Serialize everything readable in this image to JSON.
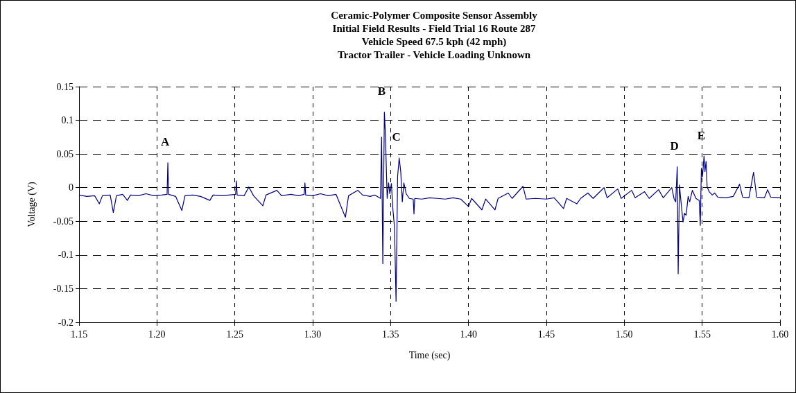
{
  "chart_data": {
    "type": "line",
    "title": "Ceramic-Polymer Composite Sensor Assembly\nInitial Field Results - Field Trial 16 Route 287\nVehicle Speed 67.5 kph (42 mph)\nTractor Trailer - Vehicle Loading Unknown",
    "xlabel": "Time (sec)",
    "ylabel": "Voltage (V)",
    "x": [
      1.15,
      1.155,
      1.16,
      1.163,
      1.165,
      1.17,
      1.172,
      1.174,
      1.178,
      1.181,
      1.183,
      1.188,
      1.193,
      1.198,
      1.203,
      1.2065,
      1.207,
      1.2075,
      1.212,
      1.216,
      1.218,
      1.223,
      1.228,
      1.234,
      1.236,
      1.242,
      1.2505,
      1.251,
      1.2515,
      1.256,
      1.259,
      1.262,
      1.268,
      1.27,
      1.277,
      1.28,
      1.286,
      1.291,
      1.2945,
      1.295,
      1.2955,
      1.3,
      1.305,
      1.31,
      1.315,
      1.321,
      1.323,
      1.329,
      1.332,
      1.337,
      1.34,
      1.3435,
      1.3442,
      1.345,
      1.346,
      1.3466,
      1.3478,
      1.3487,
      1.3495,
      1.3505,
      1.3515,
      1.3525,
      1.3535,
      1.3545,
      1.3555,
      1.3565,
      1.3575,
      1.3585,
      1.36,
      1.362,
      1.3645,
      1.365,
      1.3655,
      1.37,
      1.375,
      1.38,
      1.385,
      1.39,
      1.395,
      1.4,
      1.402,
      1.4086,
      1.411,
      1.417,
      1.419,
      1.4255,
      1.428,
      1.435,
      1.437,
      1.443,
      1.45,
      1.455,
      1.461,
      1.463,
      1.4695,
      1.472,
      1.4766,
      1.48,
      1.487,
      1.489,
      1.4958,
      1.498,
      1.5047,
      1.507,
      1.513,
      1.516,
      1.522,
      1.525,
      1.5305,
      1.532,
      1.533,
      1.534,
      1.5346,
      1.5354,
      1.5365,
      1.5377,
      1.5387,
      1.5397,
      1.541,
      1.542,
      1.5437,
      1.546,
      1.5481,
      1.5488,
      1.5495,
      1.5502,
      1.5512,
      1.5518,
      1.5525,
      1.5532,
      1.5545,
      1.5565,
      1.558,
      1.56,
      1.565,
      1.57,
      1.574,
      1.576,
      1.58,
      1.583,
      1.585,
      1.59,
      1.592,
      1.594,
      1.6
    ],
    "values": [
      -0.011,
      -0.013,
      -0.012,
      -0.024,
      -0.012,
      -0.011,
      -0.037,
      -0.012,
      -0.01,
      -0.019,
      -0.011,
      -0.012,
      -0.009,
      -0.012,
      -0.011,
      -0.01,
      0.037,
      -0.01,
      -0.013,
      -0.034,
      -0.012,
      -0.011,
      -0.013,
      -0.019,
      -0.011,
      -0.012,
      -0.01,
      0.01,
      -0.011,
      -0.012,
      0.001,
      -0.012,
      -0.027,
      -0.011,
      -0.004,
      -0.012,
      -0.01,
      -0.012,
      -0.01,
      0.007,
      -0.011,
      -0.012,
      -0.009,
      -0.012,
      -0.01,
      -0.044,
      -0.012,
      -0.004,
      -0.011,
      -0.013,
      -0.011,
      -0.016,
      0.075,
      -0.113,
      0.112,
      0.084,
      -0.016,
      0.007,
      -0.009,
      0.006,
      -0.033,
      -0.059,
      -0.169,
      0.017,
      0.044,
      0.024,
      -0.021,
      0.007,
      -0.009,
      -0.016,
      -0.017,
      -0.039,
      -0.016,
      -0.017,
      -0.015,
      -0.016,
      -0.017,
      -0.015,
      -0.017,
      -0.028,
      -0.016,
      -0.033,
      -0.017,
      -0.033,
      -0.016,
      -0.008,
      -0.016,
      0.002,
      -0.017,
      -0.016,
      -0.017,
      -0.015,
      -0.031,
      -0.016,
      -0.024,
      -0.016,
      -0.008,
      -0.016,
      0.0,
      -0.015,
      -0.002,
      -0.016,
      -0.004,
      -0.015,
      -0.006,
      -0.016,
      -0.003,
      -0.015,
      0.0,
      -0.017,
      -0.021,
      0.031,
      -0.128,
      0.004,
      -0.023,
      -0.051,
      -0.038,
      -0.041,
      -0.013,
      -0.021,
      -0.004,
      -0.016,
      -0.019,
      -0.056,
      0.029,
      0.016,
      0.047,
      0.024,
      0.039,
      0.001,
      -0.006,
      -0.011,
      -0.008,
      -0.014,
      -0.015,
      -0.013,
      0.005,
      -0.014,
      -0.015,
      0.023,
      -0.014,
      -0.015,
      -0.003,
      -0.014,
      -0.015
    ],
    "color": "#000080",
    "marker": "none",
    "line_style": "solid",
    "grid": true,
    "xlim": [
      1.15,
      1.6
    ],
    "xticks": [
      1.15,
      {
        "value": 1.2,
        "label": "1.20"
      },
      1.25,
      {
        "value": 1.3,
        "label": "1.30"
      },
      1.35,
      {
        "value": 1.4,
        "label": "1.40"
      },
      1.45,
      {
        "value": 1.5,
        "label": "1.50"
      },
      1.55,
      {
        "value": 1.6,
        "label": "1.60"
      }
    ],
    "ylim": [
      -0.2,
      0.15
    ],
    "yticks": [
      -0.2,
      -0.15,
      -0.1,
      -0.05,
      0,
      0.05,
      0.1,
      0.15
    ],
    "annotations": [
      {
        "text": "A",
        "x": 1.207,
        "y": 0.037
      },
      {
        "text": "B",
        "x": 1.346,
        "y": 0.112
      },
      {
        "text": "C",
        "x": 1.3555,
        "y": 0.044
      },
      {
        "text": "D",
        "x": 1.534,
        "y": 0.031
      },
      {
        "text": "E",
        "x": 1.5512,
        "y": 0.047
      }
    ]
  }
}
